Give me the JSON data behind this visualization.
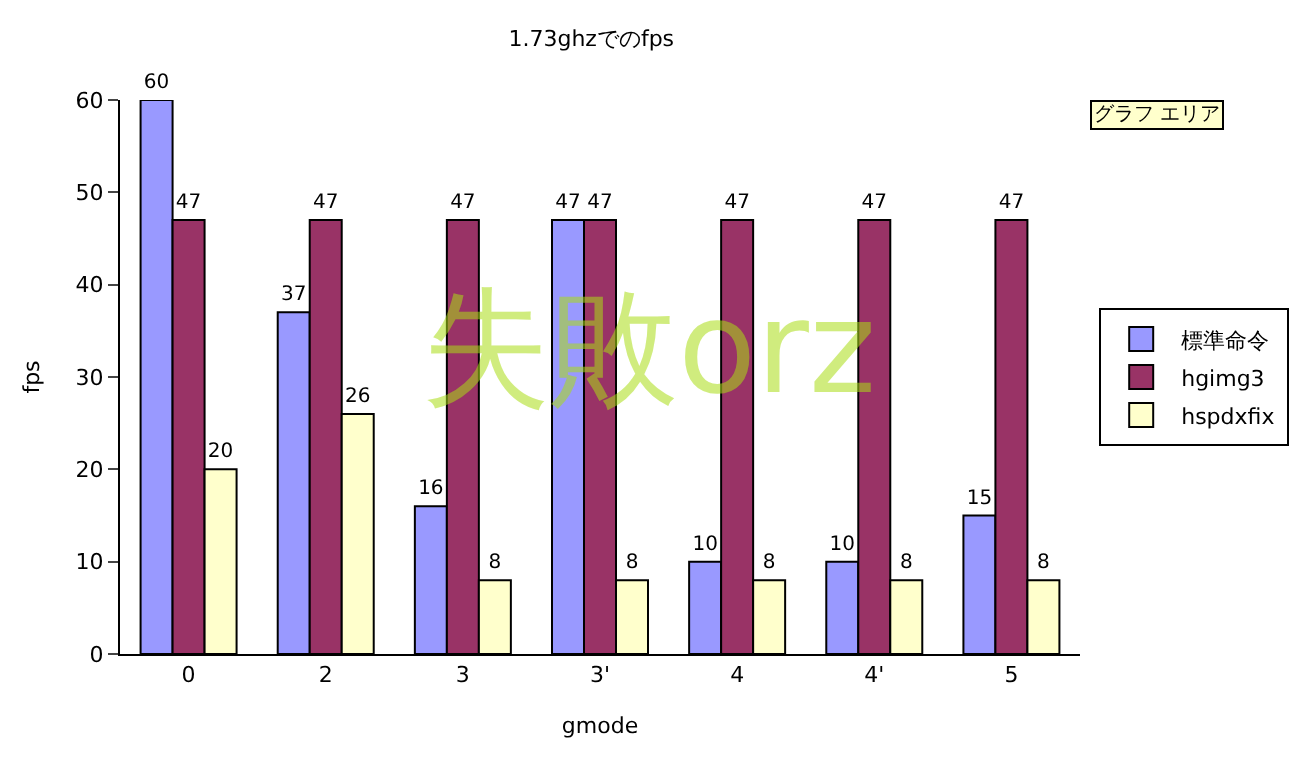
{
  "chart_data": {
    "type": "bar",
    "title": "1.73ghzでのfps",
    "xlabel": "gmode",
    "ylabel": "fps",
    "categories": [
      "0",
      "2",
      "3",
      "3'",
      "4",
      "4'",
      "5"
    ],
    "series": [
      {
        "name": "標準命令",
        "color": "#9999ff",
        "values": [
          60,
          37,
          16,
          47,
          10,
          10,
          15
        ]
      },
      {
        "name": "hgimg3",
        "color": "#993366",
        "values": [
          47,
          47,
          47,
          47,
          47,
          47,
          47
        ]
      },
      {
        "name": "hspdxfix",
        "color": "#ffffcc",
        "values": [
          20,
          26,
          8,
          8,
          8,
          8,
          8
        ]
      }
    ],
    "ylim": [
      0,
      60
    ],
    "yticks": [
      0,
      10,
      20,
      30,
      40,
      50,
      60
    ],
    "grid": false,
    "legend": "right",
    "data_labels": true,
    "annotations": [
      "失敗orz",
      "グラフ エリア"
    ]
  }
}
